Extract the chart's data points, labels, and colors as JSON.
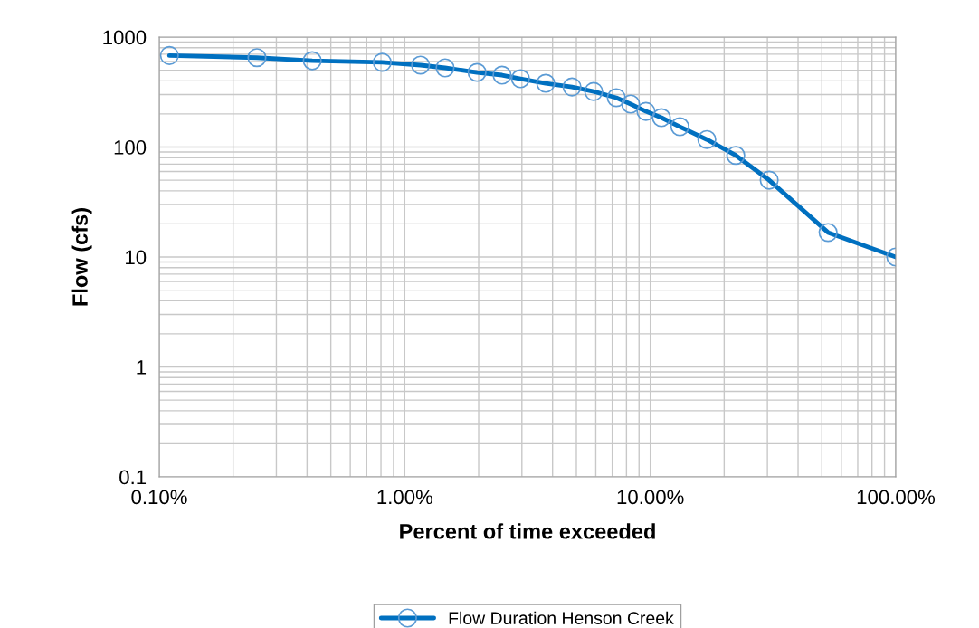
{
  "chart_data": {
    "type": "line",
    "xlabel": "Percent of time exceeded",
    "ylabel": "Flow (cfs)",
    "log": "xy",
    "grid": true,
    "legend": "bottom",
    "marker": "circle",
    "line_style": "solid",
    "xlim": [
      0.1,
      100
    ],
    "ylim": [
      0.1,
      1000
    ],
    "xticks": [
      {
        "value": 0.1,
        "label": "0.10%"
      },
      {
        "value": 1,
        "label": "1.00%"
      },
      {
        "value": 10,
        "label": "10.00%"
      },
      {
        "value": 100,
        "label": "100.00%"
      }
    ],
    "yticks": [
      {
        "value": 0.1,
        "label": "0.1"
      },
      1,
      10,
      100,
      1000
    ],
    "x": [
      0.11,
      0.25,
      0.42,
      0.81,
      1.16,
      1.46,
      1.97,
      2.49,
      2.96,
      3.75,
      4.8,
      5.88,
      7.27,
      8.32,
      9.6,
      11.1,
      13.2,
      17.0,
      22.3,
      30.5,
      53,
      100
    ],
    "series": [
      {
        "name": "Flow Duration Henson Creek",
        "color": "#0070c0",
        "values": [
          680,
          650,
          610,
          590,
          556,
          525,
          477,
          451,
          418,
          380,
          352,
          320,
          281,
          246,
          211,
          185,
          153,
          117,
          84,
          50,
          16.7,
          10
        ]
      }
    ]
  }
}
